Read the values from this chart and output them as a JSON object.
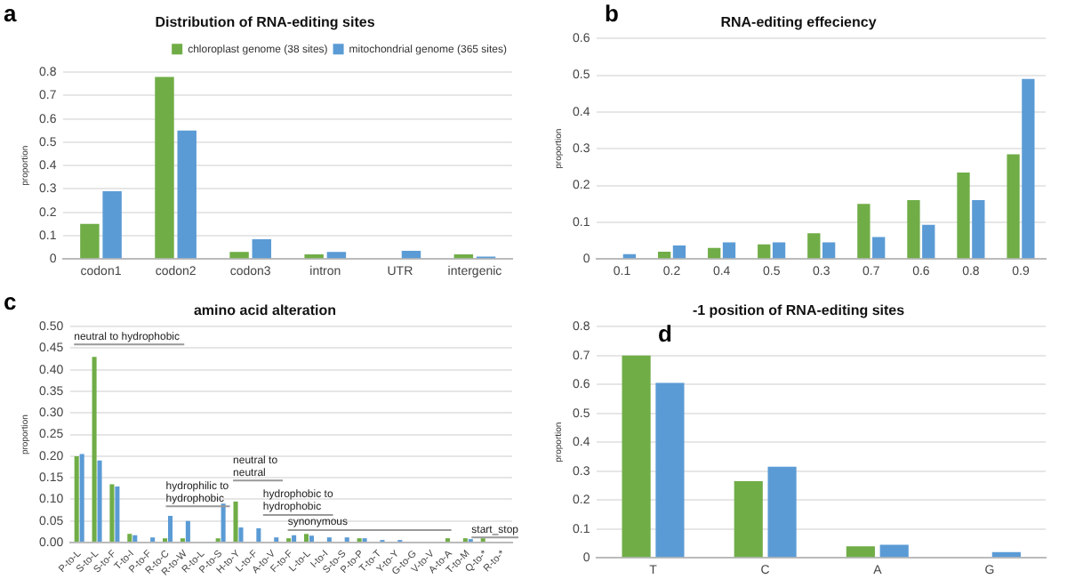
{
  "chart_data": [
    {
      "type": "bar",
      "title": "Distribution of RNA-editing sites",
      "ylabel": "proportion",
      "annotations": [
        "a"
      ],
      "categories": [
        "codon1",
        "codon2",
        "codon3",
        "intron",
        "UTR",
        "intergenic"
      ],
      "series": [
        {
          "name": "chloroplast genome (38 sites)",
          "color": "#70ad47",
          "values": [
            0.15,
            0.78,
            0.03,
            0.02,
            0,
            0.02
          ]
        },
        {
          "name": "mitochondrial genome (365 sites)",
          "color": "#5b9bd5",
          "values": [
            0.29,
            0.55,
            0.085,
            0.03,
            0.035,
            0.01
          ]
        }
      ],
      "ylim": [
        0,
        0.8
      ],
      "yticks": [
        {
          "value": 0,
          "label": "0"
        },
        0.1,
        0.2,
        0.3,
        0.4,
        0.5,
        0.6,
        0.7,
        0.8
      ],
      "grid": "y",
      "legend": "top right"
    },
    {
      "type": "bar",
      "title": "RNA-editing effeciency",
      "ylabel": "proportion",
      "annotations": [
        "b"
      ],
      "categories": [
        "0.1",
        "0.2",
        "0.4",
        "0.5",
        "0.3",
        "0.7",
        "0.6",
        "0.8",
        "0.9"
      ],
      "series": [
        {
          "color": "#70ad47",
          "values": [
            0,
            0.02,
            0.03,
            0.04,
            0.07,
            0.15,
            0.16,
            0.235,
            0.285
          ]
        },
        {
          "color": "#5b9bd5",
          "values": [
            0.013,
            0.037,
            0.045,
            0.045,
            0.045,
            0.06,
            0.093,
            0.16,
            0.49
          ]
        }
      ],
      "ylim": [
        0,
        0.6
      ],
      "yticks": [
        {
          "value": 0,
          "label": "0"
        },
        0.1,
        0.2,
        0.3,
        0.4,
        0.5,
        0.6
      ],
      "grid": "y"
    },
    {
      "type": "bar",
      "title": "amino acid alteration",
      "ylabel": "proportion",
      "annotations": [
        "c",
        "neutral to hydrophobic",
        "hydrophilic to hydrophobic",
        "neutral to neutral",
        "hydrophobic to hydrophobic",
        "synonymous",
        "start_stop"
      ],
      "categories": [
        "P-to-L",
        "S-to-L",
        "S-to-F",
        "T-to-I",
        "P-to-F",
        "R-to-C",
        "R-to-W",
        "R-to-L",
        "P-to-S",
        "H-to-Y",
        "L-to-F",
        "A-to-V",
        "F-to-F",
        "L-to-L",
        "I-to-I",
        "S-to-S",
        "P-to-P",
        "T-to-T",
        "Y-to-Y",
        "G-to-G",
        "V-to-V",
        "A-to-A",
        "T-to-M",
        "Q-to-*",
        "R-to-*"
      ],
      "series": [
        {
          "color": "#70ad47",
          "values": [
            0.2,
            0.43,
            0.135,
            0.02,
            0,
            0.01,
            0.01,
            0,
            0.01,
            0.095,
            0,
            0,
            0.01,
            0.02,
            0,
            0,
            0.01,
            0,
            0,
            0,
            0,
            0.01,
            0.01,
            0.01,
            0
          ]
        },
        {
          "color": "#5b9bd5",
          "values": [
            0.205,
            0.19,
            0.13,
            0.017,
            0.012,
            0.062,
            0.05,
            0,
            0.09,
            0.035,
            0.033,
            0.012,
            0.017,
            0.016,
            0.012,
            0.012,
            0.01,
            0.006,
            0.006,
            0,
            0,
            0,
            0.008,
            0,
            0
          ]
        }
      ],
      "ylim": [
        0,
        0.5
      ],
      "yticks": [
        {
          "value": 0,
          "label": "0.00"
        },
        {
          "value": 0.05,
          "label": "0.05"
        },
        {
          "value": 0.1,
          "label": "0.10"
        },
        {
          "value": 0.15,
          "label": "0.15"
        },
        {
          "value": 0.2,
          "label": "0.20"
        },
        {
          "value": 0.25,
          "label": "0.25"
        },
        {
          "value": 0.3,
          "label": "0.30"
        },
        {
          "value": 0.35,
          "label": "0.35"
        },
        {
          "value": 0.4,
          "label": "0.40"
        },
        {
          "value": 0.45,
          "label": "0.45"
        },
        {
          "value": 0.5,
          "label": "0.50"
        }
      ],
      "grid": "y"
    },
    {
      "type": "bar",
      "title": "-1 position of RNA-editing sites",
      "ylabel": "proportion",
      "annotations": [
        "d"
      ],
      "categories": [
        "T",
        "C",
        "A",
        "G"
      ],
      "series": [
        {
          "color": "#70ad47",
          "values": [
            0.7,
            0.265,
            0.04,
            0
          ]
        },
        {
          "color": "#5b9bd5",
          "values": [
            0.605,
            0.315,
            0.045,
            0.02
          ]
        }
      ],
      "ylim": [
        0,
        0.8
      ],
      "yticks": [
        {
          "value": 0,
          "label": "0"
        },
        0.1,
        0.2,
        0.3,
        0.4,
        0.5,
        0.6,
        0.7,
        0.8
      ],
      "grid": "y"
    }
  ]
}
